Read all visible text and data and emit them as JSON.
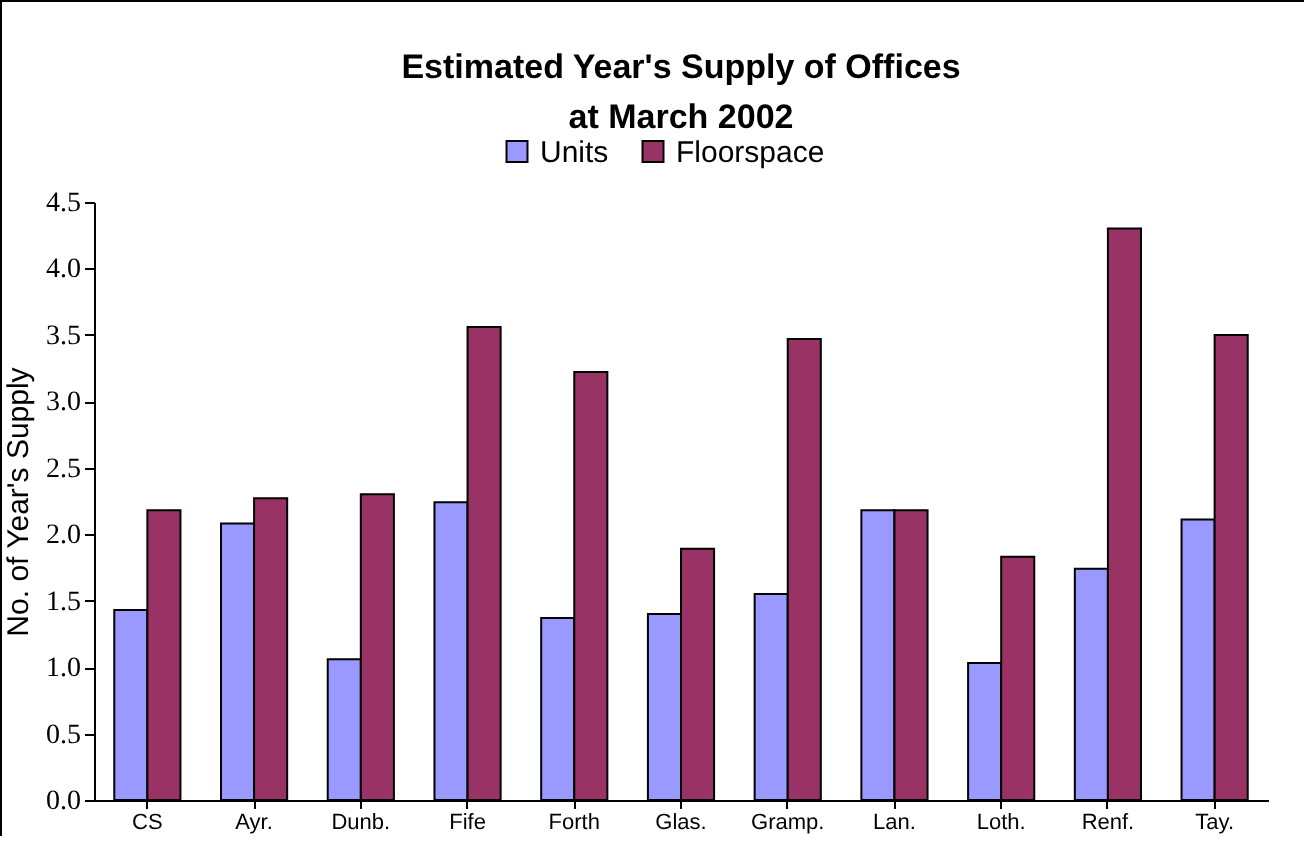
{
  "chart_data": {
    "type": "bar",
    "title": "Estimated Year's Supply of Offices\nat March 2002",
    "ylabel": "No. of Year's Supply",
    "categories": [
      "CS",
      "Ayr.",
      "Dunb.",
      "Fife",
      "Forth",
      "Glas.",
      "Gramp.",
      "Lan.",
      "Loth.",
      "Renf.",
      "Tay."
    ],
    "series": [
      {
        "name": "Units",
        "color": "#9999ff",
        "values": [
          1.43,
          2.08,
          1.06,
          2.24,
          1.37,
          1.4,
          1.55,
          2.18,
          1.03,
          1.74,
          2.11
        ]
      },
      {
        "name": "Floorspace",
        "color": "#993366",
        "values": [
          2.18,
          2.27,
          2.3,
          3.56,
          3.22,
          1.89,
          3.47,
          2.18,
          1.83,
          4.3,
          3.5
        ]
      }
    ],
    "ylim": [
      0,
      4.5
    ],
    "yticks": [
      {
        "value": 0,
        "label": "0.0"
      },
      {
        "value": 0.5,
        "label": "0.5"
      },
      {
        "value": 1,
        "label": "1.0"
      },
      {
        "value": 1.5,
        "label": "1.5"
      },
      {
        "value": 2,
        "label": "2.0"
      },
      {
        "value": 2.5,
        "label": "2.5"
      },
      {
        "value": 3,
        "label": "3.0"
      },
      {
        "value": 3.5,
        "label": "3.5"
      },
      {
        "value": 4,
        "label": "4.0"
      },
      {
        "value": 4.5,
        "label": "4.5"
      }
    ],
    "grid": false,
    "legend": "top"
  }
}
